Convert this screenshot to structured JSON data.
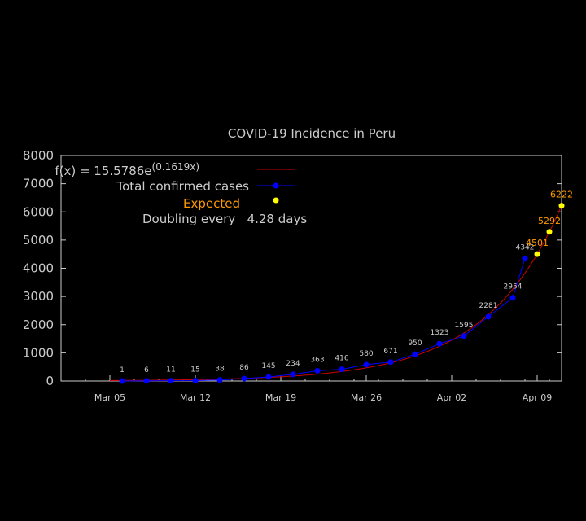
{
  "chart_data": {
    "type": "scatter",
    "title": "COVID-19 Incidence in Peru",
    "xlabel": "",
    "ylabel": "",
    "x_start": "2020-03-05",
    "x_ticks": [
      "Mar 05",
      "Mar 12",
      "Mar 19",
      "Mar 26",
      "Apr 02",
      "Apr 09"
    ],
    "xlim": [
      "2020-03-01",
      "2020-04-11"
    ],
    "ylim": [
      0,
      8000
    ],
    "y_ticks": [
      0,
      1000,
      2000,
      3000,
      4000,
      5000,
      6000,
      7000,
      8000
    ],
    "grid": false,
    "legend_position": "top-left",
    "fit": {
      "label": "f(x) = 15.5786e",
      "exponent_label": "(0.1619x)",
      "a": 15.5786,
      "b": 0.1619,
      "color": "#cc0000"
    },
    "series": [
      {
        "name": "Total confirmed cases",
        "color": "#0000ff",
        "label_color": "#cccccc",
        "points": [
          {
            "x": "2020-03-06",
            "y": 1
          },
          {
            "x": "2020-03-08",
            "y": 6
          },
          {
            "x": "2020-03-10",
            "y": 11
          },
          {
            "x": "2020-03-12",
            "y": 15
          },
          {
            "x": "2020-03-14",
            "y": 38
          },
          {
            "x": "2020-03-16",
            "y": 86
          },
          {
            "x": "2020-03-18",
            "y": 145
          },
          {
            "x": "2020-03-20",
            "y": 234
          },
          {
            "x": "2020-03-22",
            "y": 363
          },
          {
            "x": "2020-03-24",
            "y": 416
          },
          {
            "x": "2020-03-26",
            "y": 580
          },
          {
            "x": "2020-03-28",
            "y": 671
          },
          {
            "x": "2020-03-30",
            "y": 950
          },
          {
            "x": "2020-04-01",
            "y": 1323
          },
          {
            "x": "2020-04-03",
            "y": 1595
          },
          {
            "x": "2020-04-05",
            "y": 2281
          },
          {
            "x": "2020-04-07",
            "y": 2954
          },
          {
            "x": "2020-04-08",
            "y": 4342
          }
        ]
      },
      {
        "name": "Expected",
        "color": "#ffff00",
        "label_color": "#ff9900",
        "points": [
          {
            "x": "2020-04-09",
            "y": 4501
          },
          {
            "x": "2020-04-10",
            "y": 5292
          },
          {
            "x": "2020-04-11",
            "y": 6222
          }
        ]
      }
    ],
    "annotation": "Doubling every   4.28 days",
    "colors": {
      "background": "#000000",
      "axis": "#cccccc",
      "text": "#cccccc",
      "expected_text": "#ff9900"
    }
  }
}
